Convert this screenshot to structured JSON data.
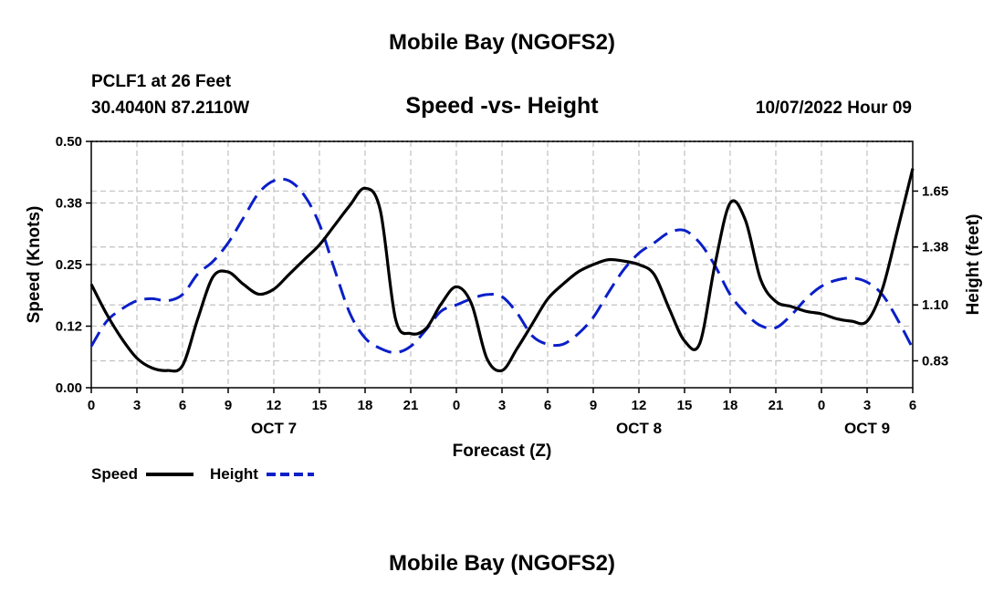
{
  "header": {
    "title": "Mobile Bay (NGOFS2)",
    "station_line": "PCLF1 at 26 Feet",
    "coords": "30.4040N  87.2110W",
    "subtitle": "Speed -vs- Height",
    "datetime": "10/07/2022 Hour 09"
  },
  "footer": {
    "title": "Mobile Bay (NGOFS2)"
  },
  "legend": {
    "speed_label": "Speed",
    "height_label": "Height"
  },
  "colors": {
    "speed": "#000000",
    "height": "#0a1fc8",
    "grid": "#c0c0c0"
  },
  "chart_data": {
    "type": "line",
    "title": "Speed -vs- Height",
    "xlabel": "Forecast (Z)",
    "ylabel": "Speed (Knots)",
    "y2label": "Height (feet)",
    "xlim": [
      0,
      54
    ],
    "ylim": [
      0,
      0.5
    ],
    "y2lim": [
      0.7,
      1.89
    ],
    "x_ticks": [
      0,
      3,
      6,
      9,
      12,
      15,
      18,
      21,
      24,
      27,
      30,
      33,
      36,
      39,
      42,
      45,
      48,
      51,
      54
    ],
    "x_tick_labels": [
      "0",
      "3",
      "6",
      "9",
      "12",
      "15",
      "18",
      "21",
      "0",
      "3",
      "6",
      "9",
      "12",
      "15",
      "18",
      "21",
      "0",
      "3",
      "6"
    ],
    "day_labels": [
      {
        "x": 12,
        "label": "OCT 7"
      },
      {
        "x": 36,
        "label": "OCT 8"
      },
      {
        "x": 51,
        "label": "OCT 9"
      }
    ],
    "y_ticks": [
      0.0,
      0.125,
      0.25,
      0.375,
      0.5
    ],
    "y_tick_labels": [
      "0.00",
      "0.12",
      "0.25",
      "0.38",
      "0.50"
    ],
    "y2_ticks": [
      0.83,
      1.1,
      1.38,
      1.65
    ],
    "y2_tick_labels": [
      "0.83",
      "1.10",
      "1.38",
      "1.65"
    ],
    "series": [
      {
        "name": "Speed",
        "axis": "left",
        "x": [
          0,
          1,
          2,
          3,
          4,
          5,
          6,
          7,
          8,
          9,
          10,
          11,
          12,
          13,
          14,
          15,
          16,
          17,
          18,
          19,
          20,
          21,
          22,
          23,
          24,
          25,
          26,
          27,
          28,
          29,
          30,
          31,
          32,
          33,
          34,
          35,
          36,
          37,
          38,
          39,
          40,
          41,
          42,
          43,
          44,
          45,
          46,
          47,
          48,
          49,
          50,
          51,
          52,
          53,
          54
        ],
        "values": [
          0.21,
          0.15,
          0.1,
          0.06,
          0.04,
          0.035,
          0.045,
          0.14,
          0.225,
          0.235,
          0.21,
          0.19,
          0.2,
          0.23,
          0.26,
          0.29,
          0.33,
          0.37,
          0.405,
          0.36,
          0.14,
          0.11,
          0.12,
          0.17,
          0.205,
          0.17,
          0.06,
          0.035,
          0.08,
          0.13,
          0.18,
          0.21,
          0.235,
          0.25,
          0.26,
          0.257,
          0.25,
          0.23,
          0.16,
          0.095,
          0.09,
          0.25,
          0.375,
          0.34,
          0.22,
          0.175,
          0.165,
          0.155,
          0.15,
          0.14,
          0.135,
          0.135,
          0.2,
          0.32,
          0.445
        ]
      },
      {
        "name": "Height",
        "axis": "right",
        "x": [
          0,
          1,
          2,
          3,
          4,
          5,
          6,
          7,
          8,
          9,
          10,
          11,
          12,
          13,
          14,
          15,
          16,
          17,
          18,
          19,
          20,
          21,
          22,
          23,
          24,
          25,
          26,
          27,
          28,
          29,
          30,
          31,
          32,
          33,
          34,
          35,
          36,
          37,
          38,
          39,
          40,
          41,
          42,
          43,
          44,
          45,
          46,
          47,
          48,
          49,
          50,
          51,
          52,
          53,
          54
        ],
        "values": [
          0.9,
          1.02,
          1.08,
          1.12,
          1.13,
          1.12,
          1.15,
          1.25,
          1.31,
          1.4,
          1.52,
          1.64,
          1.7,
          1.7,
          1.63,
          1.49,
          1.27,
          1.06,
          0.94,
          0.89,
          0.87,
          0.9,
          0.98,
          1.07,
          1.1,
          1.13,
          1.15,
          1.14,
          1.06,
          0.95,
          0.91,
          0.91,
          0.96,
          1.04,
          1.16,
          1.27,
          1.35,
          1.4,
          1.45,
          1.46,
          1.4,
          1.29,
          1.15,
          1.06,
          1.0,
          0.99,
          1.05,
          1.13,
          1.19,
          1.22,
          1.23,
          1.21,
          1.15,
          1.03,
          0.89
        ]
      }
    ]
  }
}
